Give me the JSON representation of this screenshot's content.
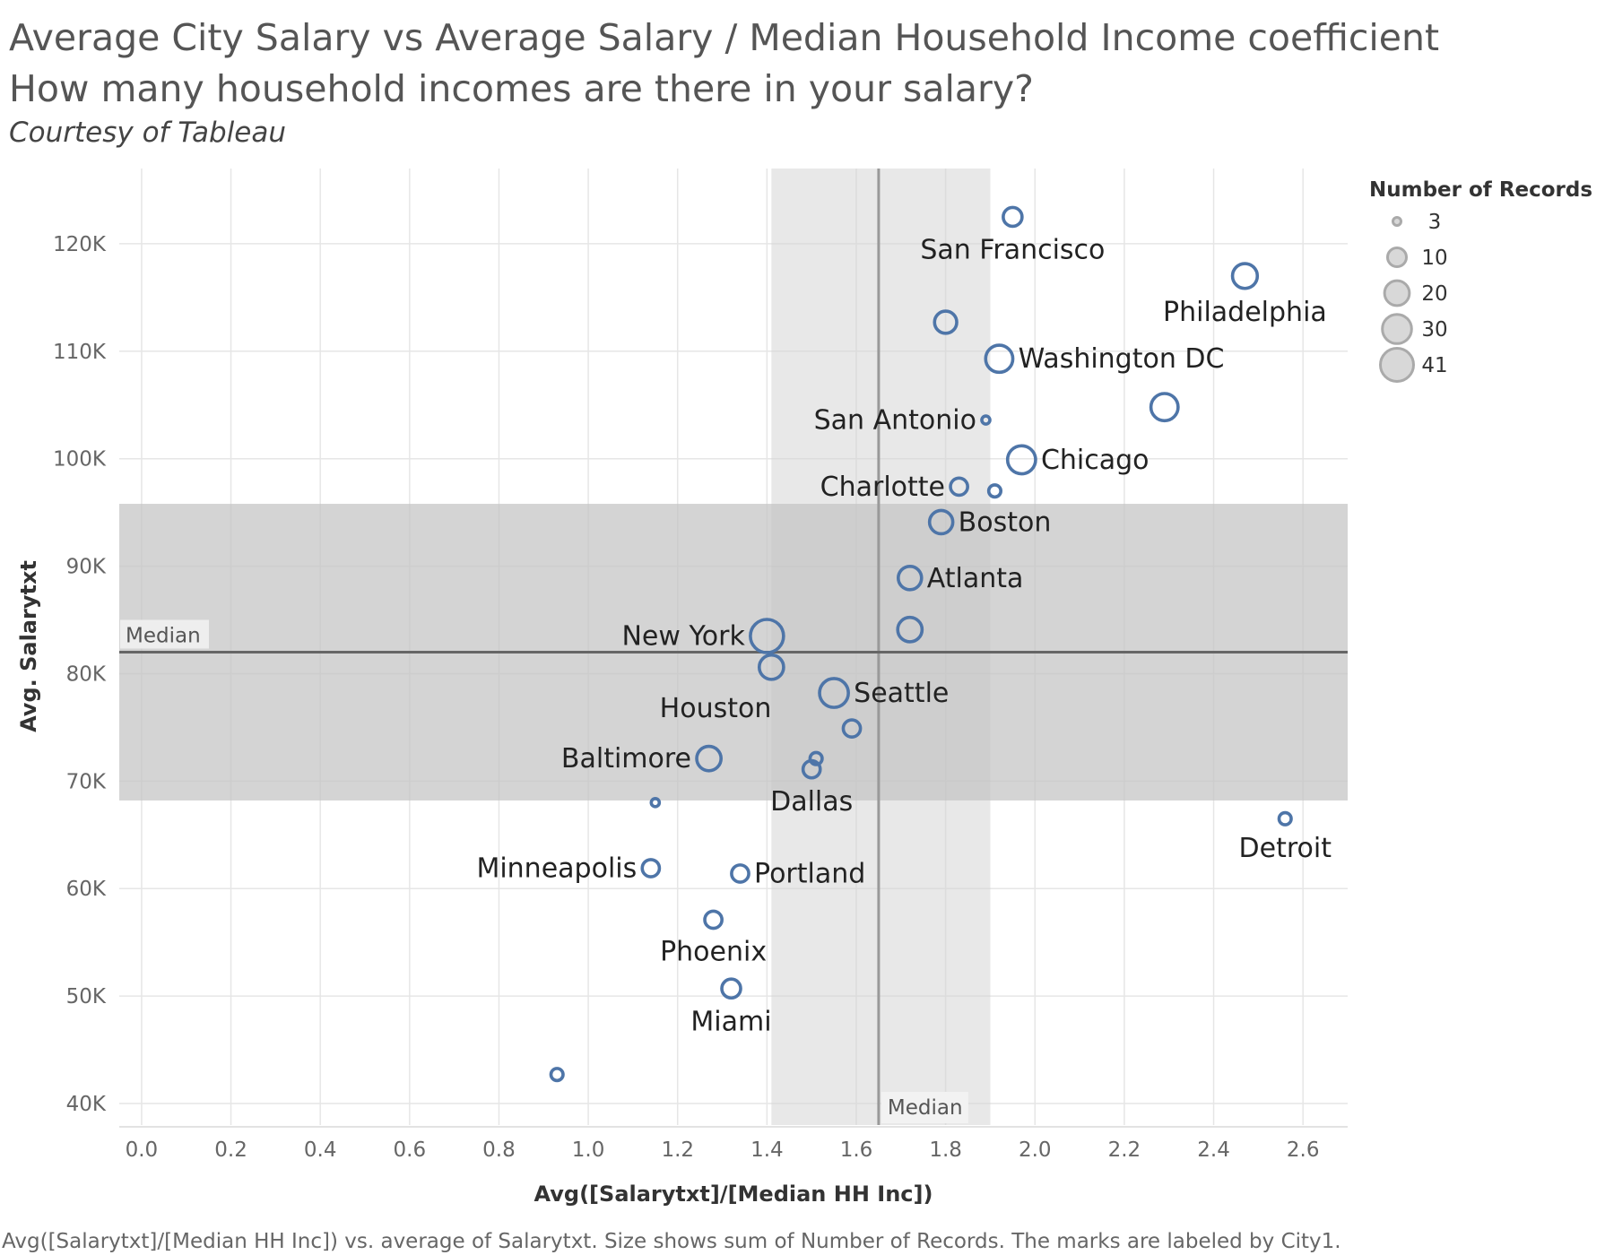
{
  "titles": {
    "line1": "Average City Salary vs Average Salary / Median Household Income coefficient",
    "line2": "How many household incomes are there in your salary?",
    "line3": "Courtesy of Tableau"
  },
  "footnote": "Avg([Salarytxt]/[Median HH Inc]) vs. average of Salarytxt.  Size shows sum of Number of Records.  The marks are labeled by City1.",
  "colors": {
    "mark": "#4e75a8",
    "band": "#d4d4d4",
    "grid": "#e6e6e6",
    "reference_line": "#666666"
  },
  "chart_data": {
    "type": "scatter",
    "xlabel": "Avg([Salarytxt]/[Median HH Inc])",
    "ylabel": "Avg. Salarytxt",
    "xlim": [
      -0.05,
      2.7
    ],
    "ylim": [
      38000,
      127000
    ],
    "x_ticks": [
      0.0,
      0.2,
      0.4,
      0.6,
      0.8,
      1.0,
      1.2,
      1.4,
      1.6,
      1.8,
      2.0,
      2.2,
      2.4,
      2.6
    ],
    "x_tick_labels": [
      "0.0",
      "0.2",
      "0.4",
      "0.6",
      "0.8",
      "1.0",
      "1.2",
      "1.4",
      "1.6",
      "1.8",
      "2.0",
      "2.2",
      "2.4",
      "2.6"
    ],
    "y_ticks": [
      40000,
      50000,
      60000,
      70000,
      80000,
      90000,
      100000,
      110000,
      120000
    ],
    "y_tick_labels": [
      "40K",
      "50K",
      "60K",
      "70K",
      "80K",
      "90K",
      "100K",
      "110K",
      "120K"
    ],
    "grid": true,
    "legend": {
      "title": "Number of Records",
      "position": "top-right",
      "entries": [
        {
          "label": "3",
          "value": 3
        },
        {
          "label": "10",
          "value": 10
        },
        {
          "label": "20",
          "value": 20
        },
        {
          "label": "30",
          "value": 30
        },
        {
          "label": "41",
          "value": 41
        }
      ]
    },
    "reference_lines": [
      {
        "axis": "x",
        "value": 1.65,
        "label": "Median"
      },
      {
        "axis": "y",
        "value": 82000,
        "label": "Median"
      }
    ],
    "reference_bands": [
      {
        "axis": "x",
        "from": 1.41,
        "to": 1.9
      },
      {
        "axis": "y",
        "from": 68200,
        "to": 95800
      }
    ],
    "points": [
      {
        "label": "San Francisco",
        "x": 1.95,
        "y": 122500,
        "records": 10,
        "label_pos": "below"
      },
      {
        "label": "Philadelphia",
        "x": 2.47,
        "y": 117000,
        "records": 20,
        "label_pos": "below"
      },
      {
        "label": "",
        "x": 1.8,
        "y": 112700,
        "records": 15
      },
      {
        "label": "Washington DC",
        "x": 1.92,
        "y": 109300,
        "records": 25,
        "label_pos": "right"
      },
      {
        "label": "",
        "x": 2.29,
        "y": 104800,
        "records": 25
      },
      {
        "label": "San Antonio",
        "x": 1.89,
        "y": 103600,
        "records": 3,
        "label_pos": "left"
      },
      {
        "label": "Chicago",
        "x": 1.97,
        "y": 99900,
        "records": 27,
        "label_pos": "right"
      },
      {
        "label": "Charlotte",
        "x": 1.83,
        "y": 97400,
        "records": 8,
        "label_pos": "left"
      },
      {
        "label": "",
        "x": 1.91,
        "y": 97000,
        "records": 4
      },
      {
        "label": "Boston",
        "x": 1.79,
        "y": 94100,
        "records": 17,
        "label_pos": "right"
      },
      {
        "label": "Atlanta",
        "x": 1.72,
        "y": 88900,
        "records": 17,
        "label_pos": "right"
      },
      {
        "label": "",
        "x": 1.72,
        "y": 84100,
        "records": 19
      },
      {
        "label": "New York",
        "x": 1.4,
        "y": 83500,
        "records": 41,
        "label_pos": "left"
      },
      {
        "label": "Houston",
        "x": 1.41,
        "y": 80600,
        "records": 19,
        "label_pos": "below-left"
      },
      {
        "label": "Seattle",
        "x": 1.55,
        "y": 78200,
        "records": 29,
        "label_pos": "right"
      },
      {
        "label": "",
        "x": 1.59,
        "y": 74900,
        "records": 8
      },
      {
        "label": "Baltimore",
        "x": 1.27,
        "y": 72100,
        "records": 19,
        "label_pos": "left"
      },
      {
        "label": "",
        "x": 1.51,
        "y": 72100,
        "records": 4
      },
      {
        "label": "Dallas",
        "x": 1.5,
        "y": 71100,
        "records": 8,
        "label_pos": "below"
      },
      {
        "label": "",
        "x": 1.15,
        "y": 68000,
        "records": 3
      },
      {
        "label": "Detroit",
        "x": 2.56,
        "y": 66500,
        "records": 4,
        "label_pos": "below"
      },
      {
        "label": "Minneapolis",
        "x": 1.14,
        "y": 61900,
        "records": 8,
        "label_pos": "left"
      },
      {
        "label": "Portland",
        "x": 1.34,
        "y": 61400,
        "records": 8,
        "label_pos": "right"
      },
      {
        "label": "Phoenix",
        "x": 1.28,
        "y": 57100,
        "records": 8,
        "label_pos": "below"
      },
      {
        "label": "Miami",
        "x": 1.32,
        "y": 50700,
        "records": 10,
        "label_pos": "below"
      },
      {
        "label": "",
        "x": 0.93,
        "y": 42700,
        "records": 4
      }
    ]
  }
}
